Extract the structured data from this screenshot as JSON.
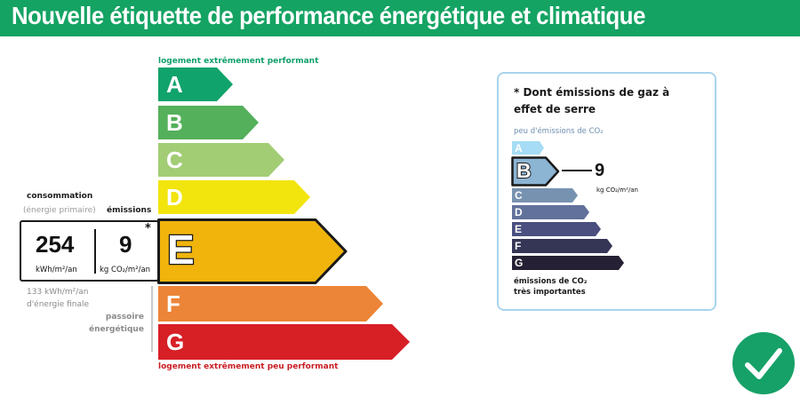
{
  "header": {
    "title": "Nouvelle étiquette de performance énergétique et climatique"
  },
  "energy_scale": {
    "top_label": "logement extrêmement performant",
    "bottom_label": "logement extrêmement peu performant",
    "classes": [
      {
        "letter": "A",
        "color": "#10a36b"
      },
      {
        "letter": "B",
        "color": "#54b05a"
      },
      {
        "letter": "C",
        "color": "#a2cd75"
      },
      {
        "letter": "D",
        "color": "#f2e50e"
      },
      {
        "letter": "E",
        "color": "#f0b40c"
      },
      {
        "letter": "F",
        "color": "#ec8537"
      },
      {
        "letter": "G",
        "color": "#d71f26"
      }
    ],
    "current_class": "E"
  },
  "consumption": {
    "title": "consommation",
    "subtitle": "(énergie primaire)",
    "value": "254",
    "unit": "kWh/m²/an",
    "final_energy_line1": "133 kWh/m²/an",
    "final_energy_line2": "d'énergie finale"
  },
  "emissions": {
    "title": "émissions",
    "value": "9",
    "unit": "kg CO₂/m²/an",
    "asterisk": "*"
  },
  "passoire": {
    "line1": "passoire",
    "line2": "énergétique"
  },
  "ges": {
    "title": "* Dont émissions de gaz à effet de serre",
    "low_label": "peu d'émissions de CO₂",
    "high_label_line1": "émissions de CO₂",
    "high_label_line2": "très importantes",
    "classes": [
      {
        "letter": "A",
        "color": "#a6dcf5"
      },
      {
        "letter": "B",
        "color": "#8cb4d3"
      },
      {
        "letter": "C",
        "color": "#7792b1"
      },
      {
        "letter": "D",
        "color": "#61719b"
      },
      {
        "letter": "E",
        "color": "#4a4f7f"
      },
      {
        "letter": "F",
        "color": "#353556"
      },
      {
        "letter": "G",
        "color": "#262034"
      }
    ],
    "current_class": "B",
    "value": "9",
    "unit": "kg CO₂/m²/an"
  },
  "badge": {
    "icon": "checkmark-icon",
    "color": "#16a168"
  }
}
